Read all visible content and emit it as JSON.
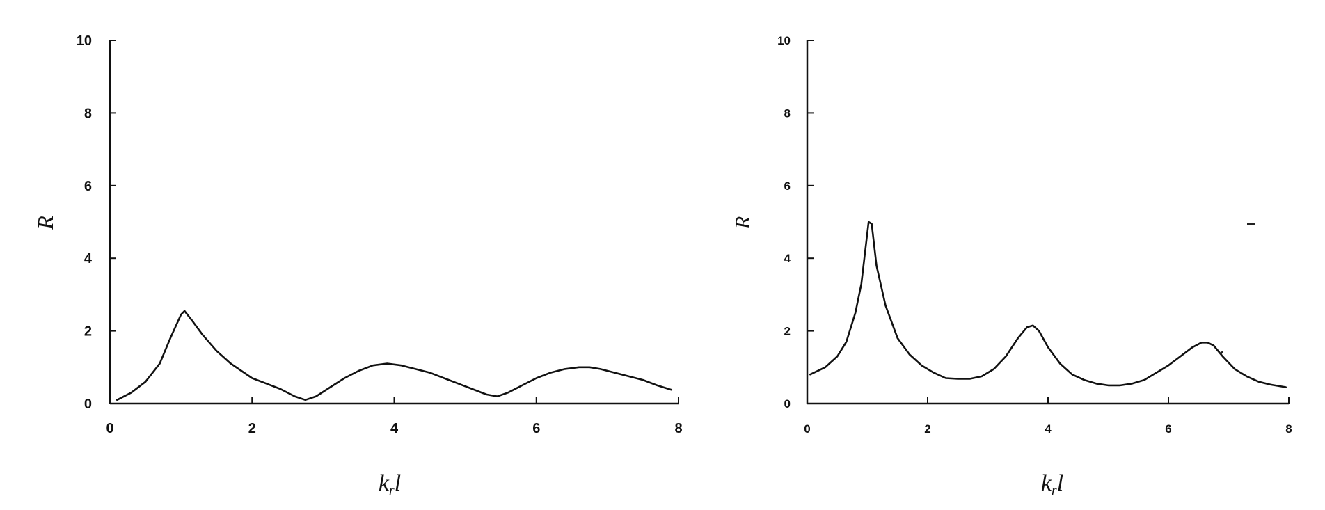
{
  "chart_data": [
    {
      "type": "line",
      "title": "",
      "xlabel": "k_r l",
      "ylabel": "R",
      "xlim": [
        0,
        8
      ],
      "ylim": [
        0,
        10
      ],
      "xticks": [
        0,
        2,
        4,
        6,
        8
      ],
      "yticks": [
        0,
        2,
        4,
        6,
        8,
        10
      ],
      "grid": false,
      "series": [
        {
          "x": [
            0.1,
            0.3,
            0.5,
            0.7,
            0.85,
            1.0,
            1.05,
            1.15,
            1.3,
            1.5,
            1.7,
            1.85,
            2.0,
            2.2,
            2.4,
            2.6,
            2.75,
            2.9,
            3.1,
            3.3,
            3.5,
            3.7,
            3.9,
            4.1,
            4.3,
            4.5,
            4.7,
            4.9,
            5.1,
            5.3,
            5.45,
            5.6,
            5.8,
            6.0,
            6.2,
            6.4,
            6.6,
            6.75,
            6.9,
            7.1,
            7.3,
            7.5,
            7.7,
            7.9
          ],
          "values": [
            0.1,
            0.3,
            0.6,
            1.1,
            1.8,
            2.45,
            2.55,
            2.3,
            1.9,
            1.45,
            1.1,
            0.9,
            0.7,
            0.55,
            0.4,
            0.2,
            0.1,
            0.2,
            0.45,
            0.7,
            0.9,
            1.05,
            1.1,
            1.05,
            0.95,
            0.85,
            0.7,
            0.55,
            0.4,
            0.25,
            0.2,
            0.3,
            0.5,
            0.7,
            0.85,
            0.95,
            1.0,
            1.0,
            0.95,
            0.85,
            0.75,
            0.65,
            0.5,
            0.38
          ]
        }
      ]
    },
    {
      "type": "line",
      "title": "",
      "xlabel": "k_r l",
      "ylabel": "R",
      "xlim": [
        0,
        8
      ],
      "ylim": [
        0,
        10
      ],
      "xticks": [
        0,
        2,
        4,
        6,
        8
      ],
      "yticks": [
        0,
        2,
        4,
        6,
        8,
        10
      ],
      "grid": false,
      "series": [
        {
          "x": [
            0.05,
            0.3,
            0.5,
            0.65,
            0.8,
            0.9,
            0.97,
            1.02,
            1.07,
            1.15,
            1.3,
            1.5,
            1.7,
            1.9,
            2.1,
            2.3,
            2.5,
            2.7,
            2.9,
            3.1,
            3.3,
            3.5,
            3.65,
            3.75,
            3.85,
            4.0,
            4.2,
            4.4,
            4.6,
            4.8,
            5.0,
            5.2,
            5.4,
            5.6,
            5.8,
            6.0,
            6.2,
            6.4,
            6.55,
            6.65,
            6.75,
            6.9,
            7.1,
            7.3,
            7.5,
            7.7,
            7.95
          ],
          "values": [
            0.8,
            1.0,
            1.3,
            1.7,
            2.5,
            3.3,
            4.3,
            5.0,
            4.95,
            3.8,
            2.7,
            1.8,
            1.35,
            1.05,
            0.85,
            0.7,
            0.68,
            0.68,
            0.75,
            0.95,
            1.3,
            1.8,
            2.1,
            2.15,
            2.0,
            1.55,
            1.1,
            0.8,
            0.65,
            0.55,
            0.5,
            0.5,
            0.55,
            0.65,
            0.85,
            1.05,
            1.3,
            1.55,
            1.68,
            1.68,
            1.6,
            1.3,
            0.95,
            0.75,
            0.6,
            0.52,
            0.45
          ]
        }
      ]
    }
  ]
}
